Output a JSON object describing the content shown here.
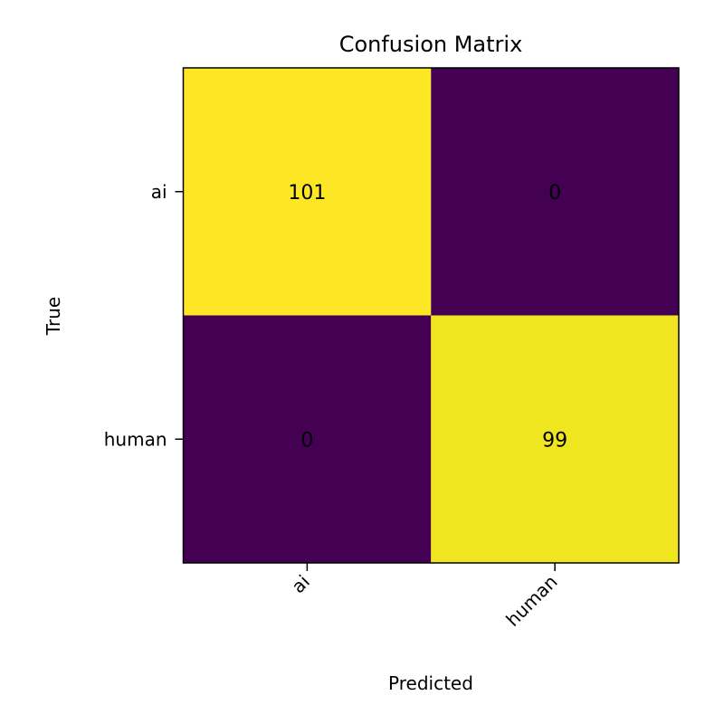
{
  "chart_data": {
    "type": "heatmap",
    "title": "Confusion Matrix",
    "xlabel": "Predicted",
    "ylabel": "True",
    "x_categories": [
      "ai",
      "human"
    ],
    "y_categories": [
      "ai",
      "human"
    ],
    "values": [
      [
        101,
        0
      ],
      [
        0,
        99
      ]
    ],
    "colormap": "viridis",
    "colors": {
      "max": "#fde725",
      "min": "#440154",
      "text": "#000000"
    },
    "grid": false
  }
}
